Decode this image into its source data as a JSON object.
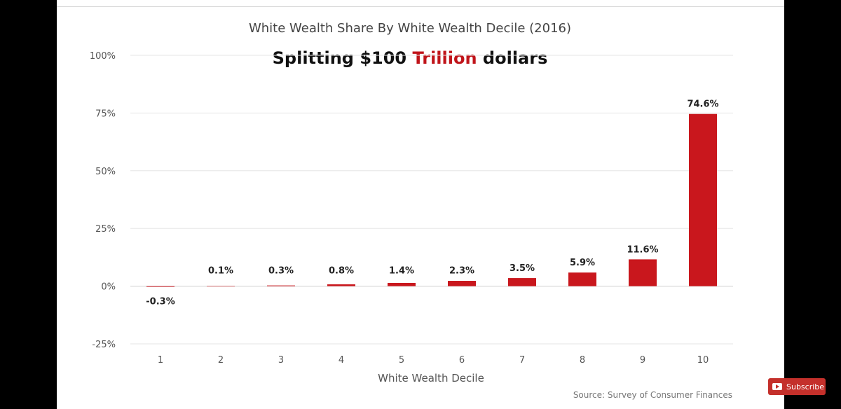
{
  "colors": {
    "bar": "#c9171d",
    "accent": "#c0141a",
    "subscribe": "#c4302b"
  },
  "overlay": {
    "part1": "Splitting $100 ",
    "accent": "Trillion",
    "part2": " dollars"
  },
  "source": "Source: Survey of Consumer Finances",
  "subscribe": {
    "label": "Subscribe",
    "icon": "youtube-logo-icon"
  },
  "chart_data": {
    "type": "bar",
    "title": "White Wealth Share By White Wealth Decile (2016)",
    "xlabel": "White Wealth Decile",
    "ylabel": "",
    "categories": [
      "1",
      "2",
      "3",
      "4",
      "5",
      "6",
      "7",
      "8",
      "9",
      "10"
    ],
    "values": [
      -0.3,
      0.1,
      0.3,
      0.8,
      1.4,
      2.3,
      3.5,
      5.9,
      11.6,
      74.6
    ],
    "data_labels": [
      "-0.3%",
      "0.1%",
      "0.3%",
      "0.8%",
      "1.4%",
      "2.3%",
      "3.5%",
      "5.9%",
      "11.6%",
      "74.6%"
    ],
    "yticks": [
      100,
      75,
      50,
      25,
      0,
      -25
    ],
    "ytick_labels": [
      "100%",
      "75%",
      "50%",
      "25%",
      "0%",
      "-25%"
    ],
    "ylim": [
      -25,
      100
    ],
    "grid": true,
    "legend": "none"
  }
}
